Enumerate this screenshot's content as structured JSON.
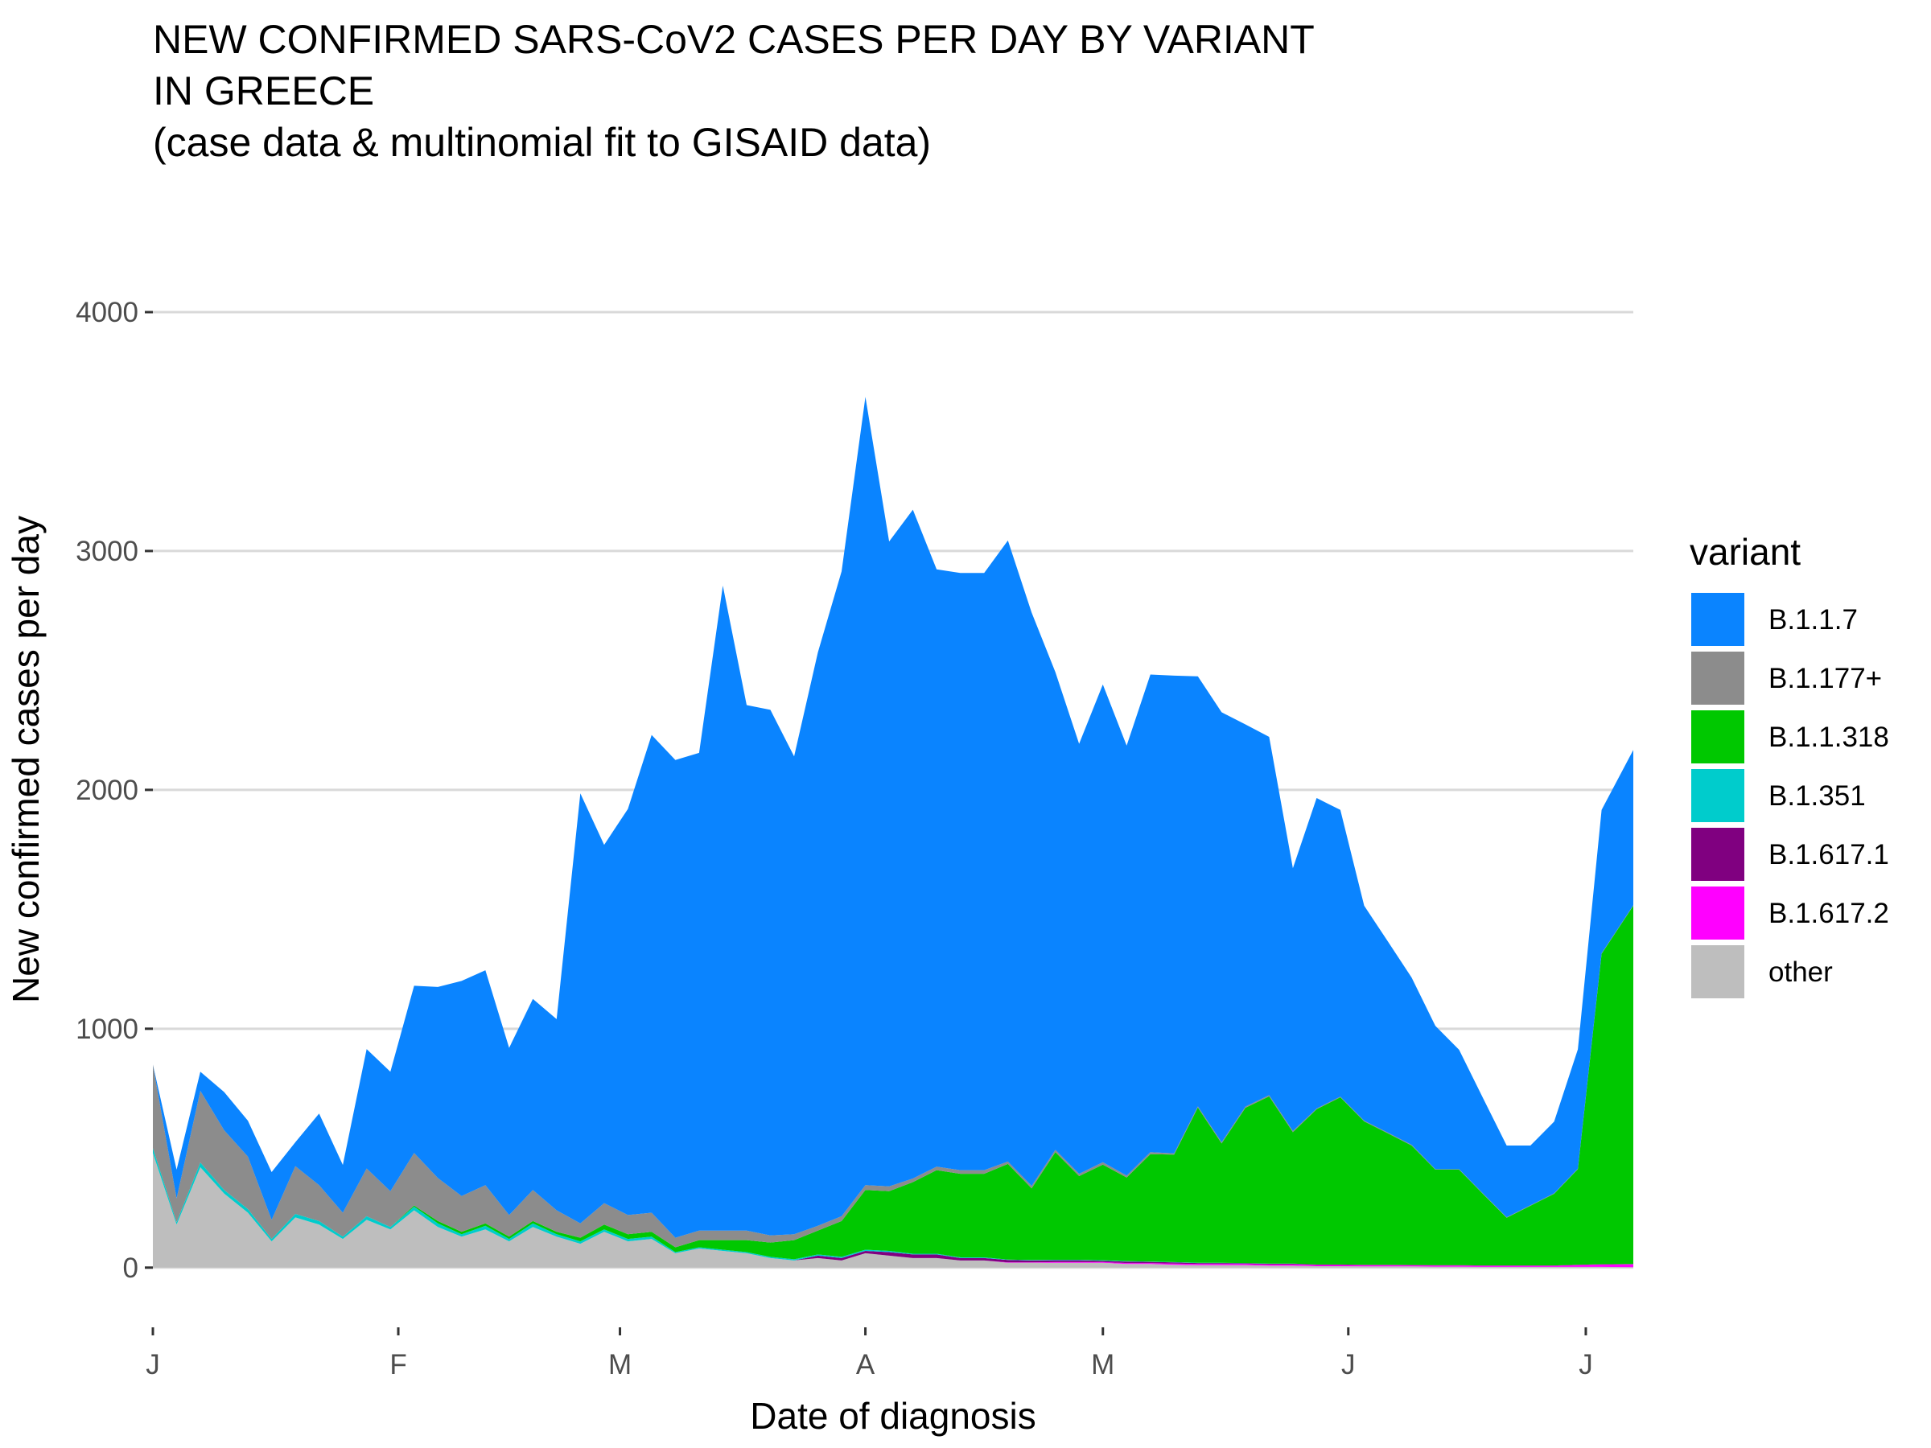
{
  "chart_data": {
    "type": "area",
    "stacked": true,
    "title_lines": [
      "NEW CONFIRMED SARS-CoV2 CASES PER DAY BY VARIANT",
      "IN GREECE",
      "(case data & multinomial fit to GISAID data)"
    ],
    "xlabel": "Date of diagnosis",
    "ylabel": "New confirmed cases per day",
    "ylim": [
      -250,
      4330
    ],
    "yticks": [
      0,
      1000,
      2000,
      3000,
      4000
    ],
    "ytick_labels": [
      "0",
      "1000",
      "2000",
      "3000",
      "4000"
    ],
    "xlim": [
      "2021-01-01",
      "2021-07-07"
    ],
    "xticks": [
      "2021-01-01",
      "2021-02-01",
      "2021-03-01",
      "2021-04-01",
      "2021-05-01",
      "2021-06-01",
      "2021-07-01"
    ],
    "xtick_labels": [
      "J",
      "F",
      "M",
      "A",
      "M",
      "J",
      "J"
    ],
    "grid": "horizontal major gridlines",
    "legend": {
      "title": "variant",
      "placement": "right",
      "entries": [
        "B.1.1.7",
        "B.1.177+",
        "B.1.1.318",
        "B.1.351",
        "B.1.617.1",
        "B.1.617.2",
        "other"
      ]
    },
    "stack_order": [
      "other",
      "B.1.617.2",
      "B.1.617.1",
      "B.1.351",
      "B.1.1.318",
      "B.1.177+",
      "B.1.1.7"
    ],
    "colors": {
      "B.1.1.7": "#0a84ff",
      "B.1.177+": "#8c8c8c",
      "B.1.1.318": "#00c800",
      "B.1.351": "#00cccc",
      "B.1.617.1": "#800080",
      "B.1.617.2": "#ff00ff",
      "other": "#bebebe"
    },
    "x": [
      "2021-01-01",
      "2021-01-04",
      "2021-01-07",
      "2021-01-10",
      "2021-01-13",
      "2021-01-16",
      "2021-01-19",
      "2021-01-22",
      "2021-01-25",
      "2021-01-28",
      "2021-01-31",
      "2021-02-03",
      "2021-02-06",
      "2021-02-09",
      "2021-02-12",
      "2021-02-15",
      "2021-02-18",
      "2021-02-21",
      "2021-02-24",
      "2021-02-27",
      "2021-03-02",
      "2021-03-05",
      "2021-03-08",
      "2021-03-11",
      "2021-03-14",
      "2021-03-17",
      "2021-03-20",
      "2021-03-23",
      "2021-03-26",
      "2021-03-29",
      "2021-04-01",
      "2021-04-04",
      "2021-04-07",
      "2021-04-10",
      "2021-04-13",
      "2021-04-16",
      "2021-04-19",
      "2021-04-22",
      "2021-04-25",
      "2021-04-28",
      "2021-05-01",
      "2021-05-04",
      "2021-05-07",
      "2021-05-10",
      "2021-05-13",
      "2021-05-16",
      "2021-05-19",
      "2021-05-22",
      "2021-05-25",
      "2021-05-28",
      "2021-05-31",
      "2021-06-03",
      "2021-06-06",
      "2021-06-09",
      "2021-06-12",
      "2021-06-15",
      "2021-06-18",
      "2021-06-21",
      "2021-06-24",
      "2021-06-27",
      "2021-06-30",
      "2021-07-03",
      "2021-07-07"
    ],
    "series": [
      {
        "name": "other",
        "values": [
          480,
          180,
          420,
          310,
          230,
          110,
          210,
          180,
          120,
          200,
          160,
          240,
          170,
          130,
          160,
          110,
          170,
          130,
          100,
          150,
          110,
          120,
          60,
          80,
          70,
          60,
          40,
          30,
          40,
          30,
          60,
          50,
          40,
          40,
          30,
          30,
          20,
          20,
          20,
          20,
          20,
          15,
          15,
          12,
          10,
          10,
          10,
          8,
          8,
          6,
          6,
          5,
          5,
          5,
          4,
          4,
          3,
          3,
          3,
          3,
          3,
          3,
          2
        ]
      },
      {
        "name": "B.1.617.2",
        "values": [
          0,
          0,
          0,
          0,
          0,
          0,
          0,
          0,
          0,
          0,
          0,
          0,
          0,
          0,
          0,
          0,
          0,
          0,
          0,
          0,
          0,
          0,
          0,
          0,
          0,
          0,
          0,
          0,
          0,
          0,
          0,
          0,
          0,
          0,
          0,
          0,
          2,
          2,
          3,
          3,
          3,
          4,
          4,
          5,
          5,
          5,
          5,
          5,
          5,
          5,
          5,
          5,
          5,
          5,
          5,
          5,
          5,
          5,
          5,
          5,
          8,
          10,
          12
        ]
      },
      {
        "name": "B.1.617.1",
        "values": [
          0,
          0,
          0,
          0,
          0,
          0,
          0,
          0,
          0,
          0,
          0,
          0,
          0,
          0,
          0,
          0,
          0,
          0,
          0,
          0,
          0,
          0,
          0,
          0,
          0,
          0,
          0,
          0,
          10,
          10,
          10,
          15,
          15,
          15,
          10,
          10,
          10,
          8,
          8,
          8,
          6,
          6,
          5,
          5,
          4,
          4,
          3,
          3,
          3,
          2,
          2,
          2,
          2,
          1,
          1,
          1,
          1,
          1,
          1,
          1,
          1,
          1,
          1
        ]
      },
      {
        "name": "B.1.351",
        "values": [
          20,
          10,
          20,
          15,
          15,
          10,
          15,
          15,
          10,
          15,
          10,
          15,
          15,
          10,
          15,
          10,
          15,
          10,
          10,
          10,
          10,
          10,
          5,
          5,
          5,
          5,
          5,
          5,
          5,
          5,
          5,
          5,
          3,
          3,
          3,
          3,
          2,
          2,
          2,
          2,
          2,
          2,
          1,
          1,
          1,
          1,
          1,
          1,
          1,
          0,
          0,
          0,
          0,
          0,
          0,
          0,
          0,
          0,
          0,
          0,
          0,
          0,
          0
        ]
      },
      {
        "name": "B.1.1.318",
        "values": [
          0,
          0,
          0,
          0,
          0,
          0,
          0,
          0,
          0,
          0,
          0,
          5,
          10,
          10,
          10,
          10,
          10,
          10,
          15,
          20,
          20,
          20,
          20,
          30,
          40,
          50,
          60,
          80,
          100,
          150,
          250,
          250,
          300,
          350,
          350,
          350,
          400,
          300,
          450,
          350,
          400,
          350,
          450,
          450,
          650,
          500,
          650,
          700,
          550,
          650,
          700,
          600,
          550,
          500,
          400,
          400,
          300,
          200,
          250,
          300,
          400,
          1300,
          1500
        ]
      },
      {
        "name": "B.1.177+",
        "values": [
          350,
          100,
          300,
          250,
          220,
          80,
          200,
          150,
          100,
          200,
          150,
          220,
          180,
          150,
          160,
          90,
          130,
          90,
          60,
          90,
          80,
          80,
          40,
          40,
          40,
          40,
          30,
          25,
          20,
          20,
          20,
          20,
          15,
          15,
          15,
          15,
          10,
          10,
          10,
          10,
          10,
          8,
          8,
          5,
          5,
          5,
          5,
          5,
          5,
          3,
          3,
          3,
          3,
          3,
          2,
          2,
          2,
          2,
          2,
          2,
          2,
          2,
          2
        ]
      },
      {
        "name": "B.1.1.7",
        "values": [
          0,
          120,
          80,
          160,
          150,
          200,
          100,
          300,
          200,
          500,
          500,
          700,
          800,
          900,
          900,
          700,
          800,
          800,
          1800,
          1500,
          1700,
          2000,
          2000,
          2000,
          2700,
          2200,
          2200,
          2000,
          2400,
          2700,
          3300,
          2700,
          2800,
          2500,
          2500,
          2500,
          2600,
          2400,
          2000,
          1800,
          2000,
          1800,
          2000,
          2000,
          1800,
          1800,
          1600,
          1500,
          1100,
          1300,
          1200,
          900,
          800,
          700,
          600,
          500,
          400,
          300,
          250,
          300,
          500,
          600,
          650
        ]
      }
    ]
  }
}
